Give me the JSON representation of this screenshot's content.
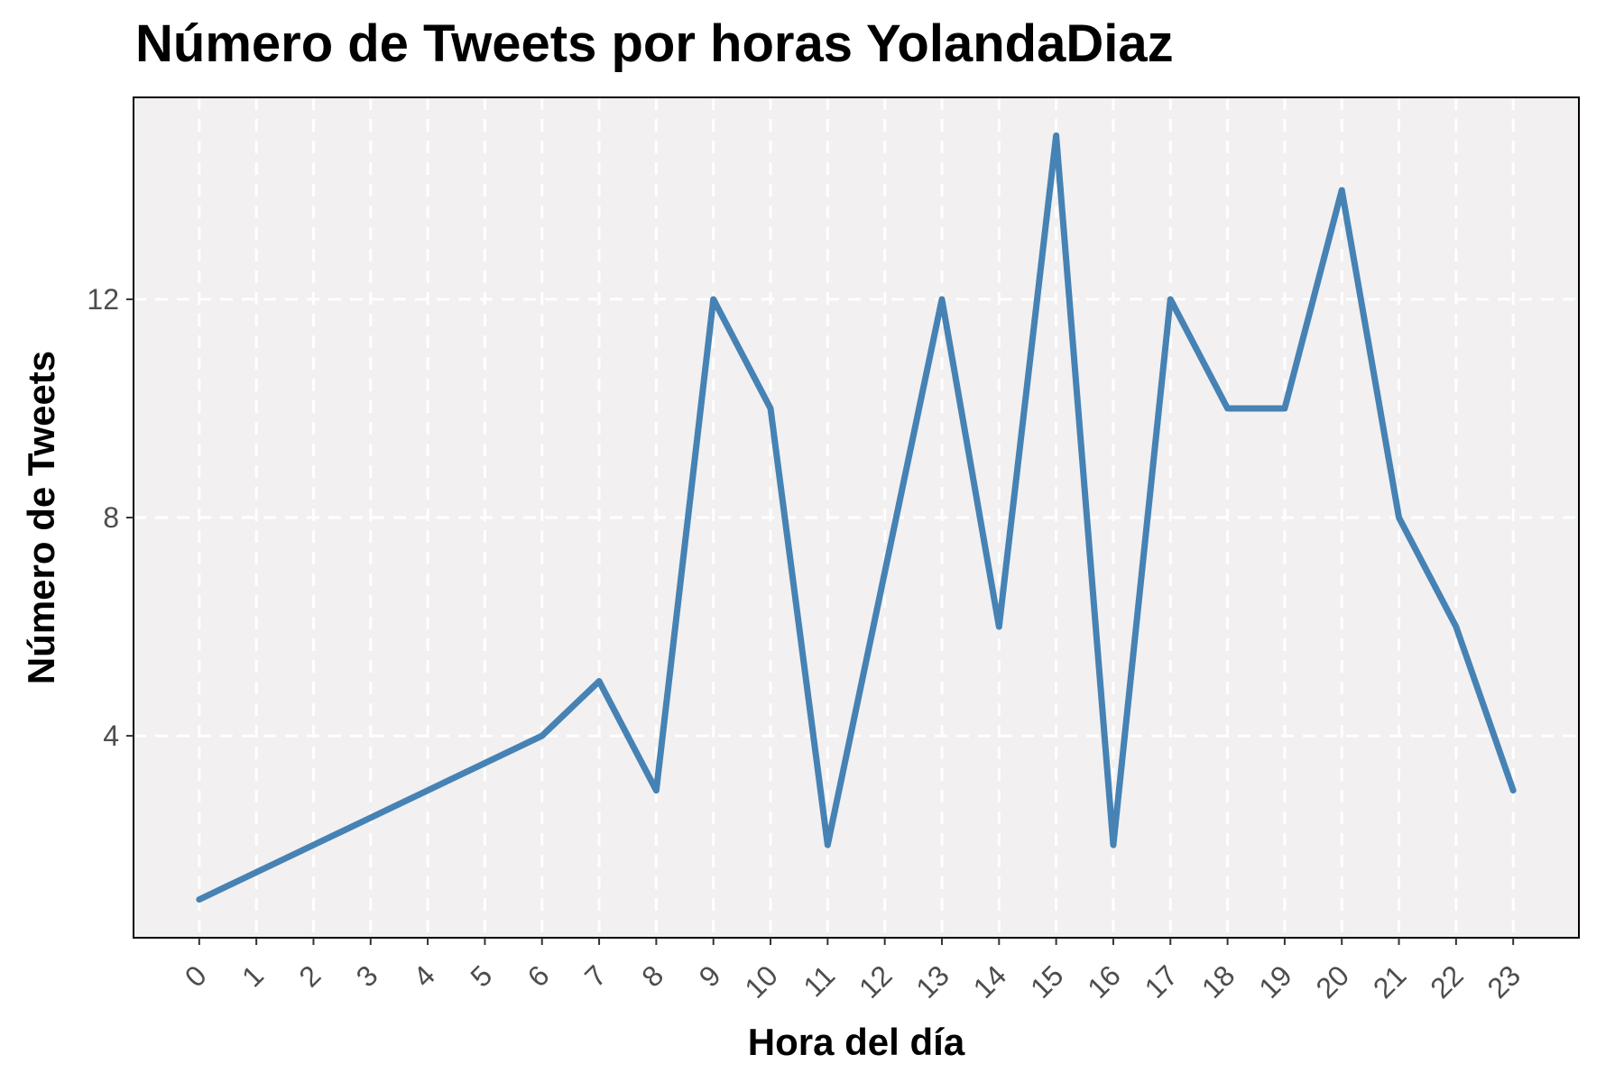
{
  "chart_data": {
    "type": "line",
    "title": "Número de Tweets por horas YolandaDiaz",
    "xlabel": "Hora del día",
    "ylabel": "Número de Tweets",
    "x": [
      0,
      1,
      2,
      3,
      4,
      5,
      6,
      7,
      8,
      9,
      10,
      11,
      12,
      13,
      14,
      15,
      16,
      17,
      18,
      19,
      20,
      21,
      22,
      23
    ],
    "x_tick_labels": [
      "0",
      "1",
      "2",
      "3",
      "4",
      "5",
      "6",
      "7",
      "8",
      "9",
      "10",
      "11",
      "12",
      "13",
      "14",
      "15",
      "16",
      "17",
      "18",
      "19",
      "20",
      "21",
      "22",
      "23"
    ],
    "series": [
      {
        "values": [
          1,
          1.5,
          2,
          2.5,
          3,
          3.5,
          4,
          5,
          3,
          12,
          10,
          2,
          7,
          12,
          6,
          15,
          2,
          12,
          10,
          10,
          14,
          8,
          6,
          3
        ],
        "color": "#4682b4"
      }
    ],
    "xlim": [
      -1.15,
      24.15
    ],
    "ylim": [
      0.3,
      15.7
    ],
    "y_ticks": [
      4,
      8,
      12
    ],
    "y_tick_labels": [
      "4",
      "8",
      "12"
    ],
    "x_tick_label_rotation": 45,
    "grid": true,
    "grid_style": "dashed",
    "panel_background": "#f2f0f1",
    "legend": "none"
  }
}
